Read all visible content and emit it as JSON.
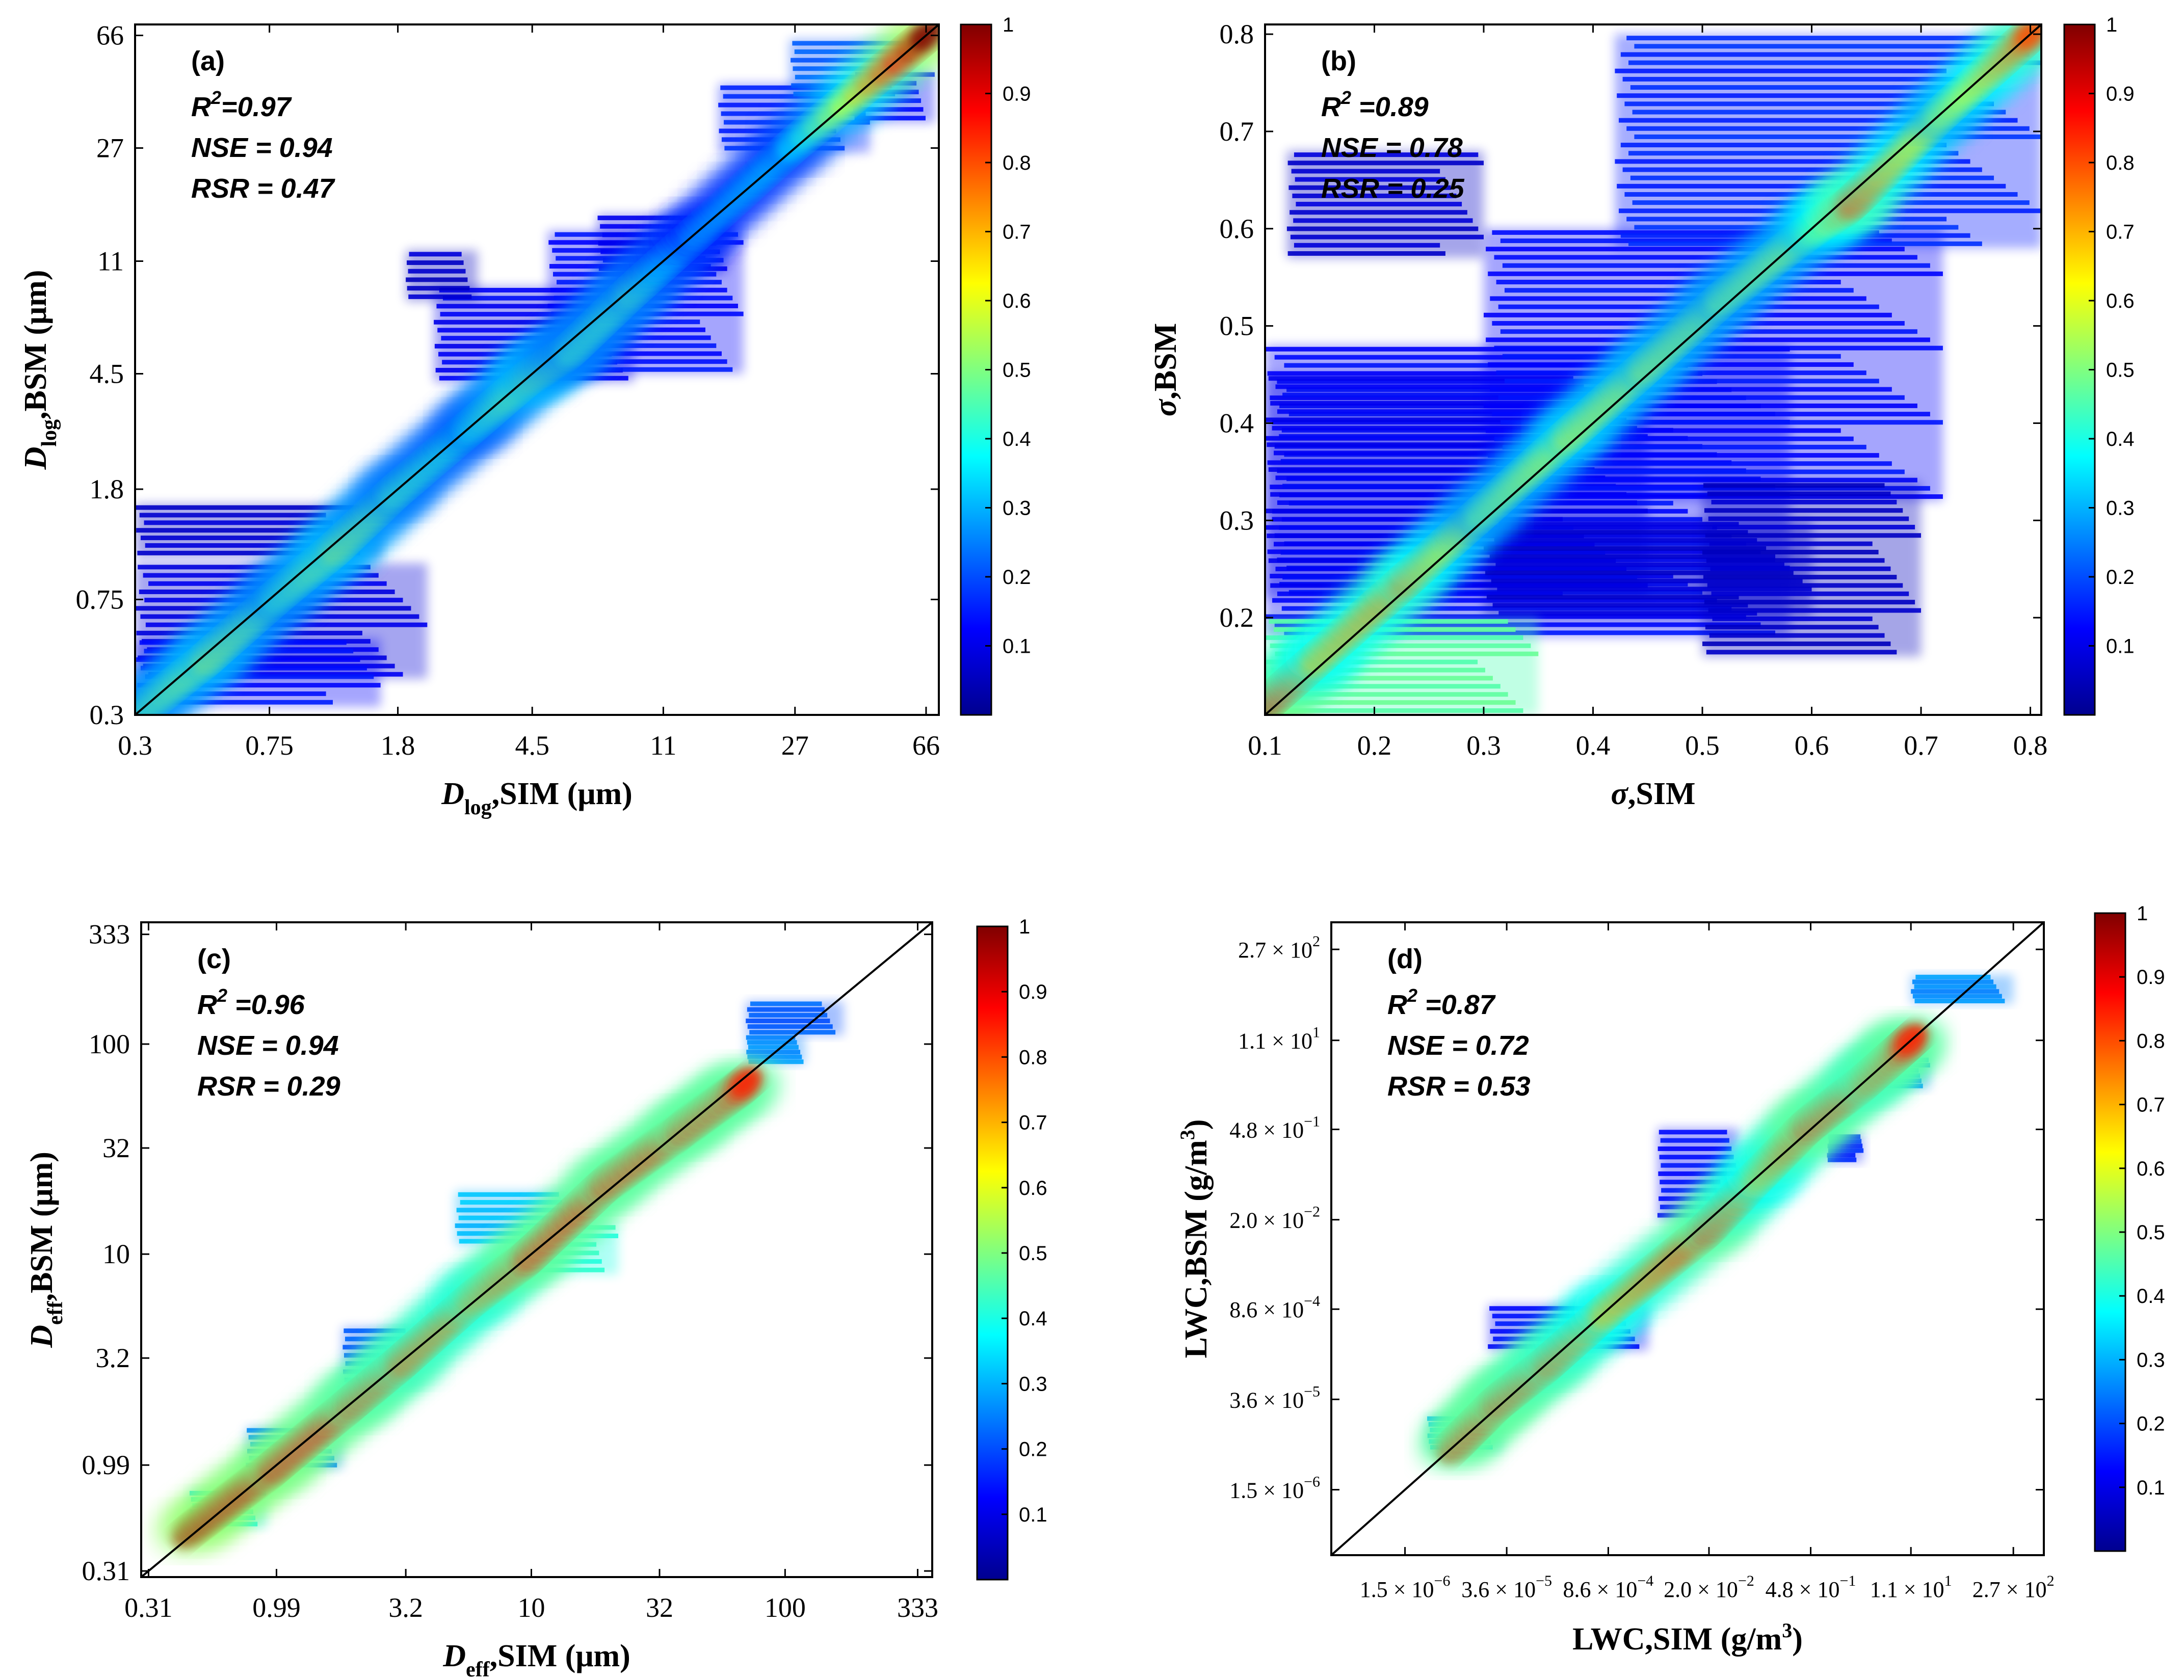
{
  "chart_data": [
    {
      "type": "heatmap",
      "panel_label": "(a)",
      "xlabel": {
        "main": "D",
        "sub": "log",
        "rest": ",SIM (μm)"
      },
      "ylabel": {
        "main": "D",
        "sub": "log",
        "rest": ",BSM (μm)"
      },
      "scale": "log",
      "xlim": [
        0.3,
        72
      ],
      "ylim": [
        0.3,
        72
      ],
      "x_ticks": [
        {
          "value": 0.3,
          "label": "0.3"
        },
        {
          "value": 0.75,
          "label": "0.75"
        },
        {
          "value": 1.8,
          "label": "1.8"
        },
        {
          "value": 4.5,
          "label": "4.5"
        },
        {
          "value": 11,
          "label": "11"
        },
        {
          "value": 27,
          "label": "27"
        },
        {
          "value": 66,
          "label": "66"
        }
      ],
      "y_ticks": [
        {
          "value": 0.3,
          "label": "0.3"
        },
        {
          "value": 0.75,
          "label": "0.75"
        },
        {
          "value": 1.8,
          "label": "1.8"
        },
        {
          "value": 4.5,
          "label": "4.5"
        },
        {
          "value": 11,
          "label": "11"
        },
        {
          "value": 27,
          "label": "27"
        },
        {
          "value": 66,
          "label": "66"
        }
      ],
      "stats": [
        {
          "name": "R",
          "sup": "2",
          "text": "=0.97"
        },
        {
          "name": "NSE",
          "sup": "",
          "text": " = 0.94"
        },
        {
          "name": "RSR",
          "sup": "",
          "text": " = 0.47"
        }
      ],
      "colorbar": {
        "min": 0,
        "max": 1,
        "ticks": [
          "0.1",
          "0.2",
          "0.3",
          "0.4",
          "0.5",
          "0.6",
          "0.7",
          "0.8",
          "0.9",
          "1"
        ]
      },
      "density": {
        "path": [
          [
            0.3,
            0.3,
            0.45
          ],
          [
            0.5,
            0.48,
            0.55
          ],
          [
            0.8,
            0.78,
            0.45
          ],
          [
            1.2,
            1.15,
            0.55
          ],
          [
            1.8,
            1.8,
            0.45
          ],
          [
            3,
            3,
            0.4
          ],
          [
            4.5,
            4.5,
            0.55
          ],
          [
            6,
            5.6,
            0.45
          ],
          [
            9,
            8.8,
            0.45
          ],
          [
            14,
            14,
            0.3
          ],
          [
            27,
            28,
            0.35
          ],
          [
            66,
            66,
            1.0
          ]
        ],
        "blobs": [
          {
            "x": [
              0.3,
              1.6
            ],
            "y": [
              1.05,
              1.6
            ],
            "level": 0.06
          },
          {
            "x": [
              0.3,
              2.2
            ],
            "y": [
              0.4,
              1.0
            ],
            "level": 0.08
          },
          {
            "x": [
              0.3,
              1.6
            ],
            "y": [
              0.32,
              0.55
            ],
            "level": 0.12
          },
          {
            "x": [
              2.3,
              9
            ],
            "y": [
              4.2,
              9
            ],
            "level": 0.1
          },
          {
            "x": [
              5,
              19
            ],
            "y": [
              4.5,
              14
            ],
            "level": 0.12
          },
          {
            "x": [
              1.9,
              3.1
            ],
            "y": [
              8,
              12
            ],
            "level": 0.05
          },
          {
            "x": [
              7,
              17
            ],
            "y": [
              10,
              16
            ],
            "level": 0.1
          },
          {
            "x": [
              16,
              45
            ],
            "y": [
              26,
              45
            ],
            "level": 0.15
          },
          {
            "x": [
              26,
              60
            ],
            "y": [
              40,
              64
            ],
            "level": 0.2
          },
          {
            "x": [
              40,
              70
            ],
            "y": [
              33,
              50
            ],
            "level": 0.12
          }
        ]
      }
    },
    {
      "type": "heatmap",
      "panel_label": "(b)",
      "xlabel": {
        "main": "σ",
        "sub": "",
        "rest": ",SIM"
      },
      "ylabel": {
        "main": "σ",
        "sub": "",
        "rest": ",BSM"
      },
      "scale": "linear",
      "xlim": [
        0.1,
        0.81
      ],
      "ylim": [
        0.1,
        0.81
      ],
      "x_ticks": [
        {
          "value": 0.1,
          "label": "0.1"
        },
        {
          "value": 0.2,
          "label": "0.2"
        },
        {
          "value": 0.3,
          "label": "0.3"
        },
        {
          "value": 0.4,
          "label": "0.4"
        },
        {
          "value": 0.5,
          "label": "0.5"
        },
        {
          "value": 0.6,
          "label": "0.6"
        },
        {
          "value": 0.7,
          "label": "0.7"
        },
        {
          "value": 0.8,
          "label": "0.8"
        }
      ],
      "y_ticks": [
        {
          "value": 0.2,
          "label": "0.2"
        },
        {
          "value": 0.3,
          "label": "0.3"
        },
        {
          "value": 0.4,
          "label": "0.4"
        },
        {
          "value": 0.5,
          "label": "0.5"
        },
        {
          "value": 0.6,
          "label": "0.6"
        },
        {
          "value": 0.7,
          "label": "0.7"
        },
        {
          "value": 0.8,
          "label": "0.8"
        }
      ],
      "stats": [
        {
          "name": "R",
          "sup": "2",
          "text": " =0.89"
        },
        {
          "name": "NSE",
          "sup": "",
          "text": " = 0.78"
        },
        {
          "name": "RSR",
          "sup": "",
          "text": " = 0.25"
        }
      ],
      "colorbar": {
        "min": 0,
        "max": 1,
        "ticks": [
          "0.1",
          "0.2",
          "0.3",
          "0.4",
          "0.5",
          "0.6",
          "0.7",
          "0.8",
          "0.9",
          "1"
        ]
      },
      "density": {
        "path": [
          [
            0.1,
            0.11,
            0.95
          ],
          [
            0.15,
            0.16,
            0.7
          ],
          [
            0.23,
            0.24,
            0.75
          ],
          [
            0.3,
            0.31,
            0.5
          ],
          [
            0.38,
            0.39,
            0.6
          ],
          [
            0.45,
            0.46,
            0.55
          ],
          [
            0.52,
            0.53,
            0.5
          ],
          [
            0.6,
            0.6,
            0.55
          ],
          [
            0.64,
            0.63,
            0.8
          ],
          [
            0.72,
            0.72,
            0.55
          ],
          [
            0.8,
            0.8,
            0.8
          ]
        ],
        "blobs": [
          {
            "x": [
              0.1,
              0.58
            ],
            "y": [
              0.18,
              0.48
            ],
            "level": 0.12
          },
          {
            "x": [
              0.1,
              0.45
            ],
            "y": [
              0.22,
              0.45
            ],
            "level": 0.1
          },
          {
            "x": [
              0.3,
              0.72
            ],
            "y": [
              0.32,
              0.6
            ],
            "level": 0.12
          },
          {
            "x": [
              0.42,
              0.81
            ],
            "y": [
              0.58,
              0.8
            ],
            "level": 0.15
          },
          {
            "x": [
              0.12,
              0.3
            ],
            "y": [
              0.57,
              0.68
            ],
            "level": 0.06
          },
          {
            "x": [
              0.3,
              0.6
            ],
            "y": [
              0.2,
              0.3
            ],
            "level": 0.06
          },
          {
            "x": [
              0.5,
              0.7
            ],
            "y": [
              0.16,
              0.34
            ],
            "level": 0.05
          },
          {
            "x": [
              0.1,
              0.35
            ],
            "y": [
              0.1,
              0.2
            ],
            "level": 0.45
          }
        ]
      }
    },
    {
      "type": "heatmap",
      "panel_label": "(c)",
      "xlabel": {
        "main": "D",
        "sub": "eff",
        "rest": ",SIM (μm)"
      },
      "ylabel": {
        "main": "D",
        "sub": "eff",
        "rest": ",BSM (μm)"
      },
      "scale": "log",
      "xlim": [
        0.29,
        380
      ],
      "ylim": [
        0.29,
        380
      ],
      "x_ticks": [
        {
          "value": 0.31,
          "label": "0.31"
        },
        {
          "value": 0.99,
          "label": "0.99"
        },
        {
          "value": 3.2,
          "label": "3.2"
        },
        {
          "value": 10,
          "label": "10"
        },
        {
          "value": 32,
          "label": "32"
        },
        {
          "value": 100,
          "label": "100"
        },
        {
          "value": 333,
          "label": "333"
        }
      ],
      "y_ticks": [
        {
          "value": 0.31,
          "label": "0.31"
        },
        {
          "value": 0.99,
          "label": "0.99"
        },
        {
          "value": 3.2,
          "label": "3.2"
        },
        {
          "value": 10,
          "label": "10"
        },
        {
          "value": 32,
          "label": "32"
        },
        {
          "value": 100,
          "label": "100"
        },
        {
          "value": 333,
          "label": "333"
        }
      ],
      "stats": [
        {
          "name": "R",
          "sup": "2",
          "text": " =0.96"
        },
        {
          "name": "NSE",
          "sup": "",
          "text": " = 0.94"
        },
        {
          "name": "RSR",
          "sup": "",
          "text": " = 0.29"
        }
      ],
      "colorbar": {
        "min": 0,
        "max": 1,
        "ticks": [
          "0.1",
          "0.2",
          "0.3",
          "0.4",
          "0.5",
          "0.6",
          "0.7",
          "0.8",
          "0.9",
          "1"
        ]
      },
      "density": {
        "path": [
          [
            0.45,
            0.48,
            0.95
          ],
          [
            0.99,
            0.99,
            0.9
          ],
          [
            2,
            2,
            0.85
          ],
          [
            3.2,
            3.2,
            0.8
          ],
          [
            6,
            6.3,
            0.75
          ],
          [
            10,
            10,
            0.85
          ],
          [
            20,
            22,
            0.85
          ],
          [
            40,
            40,
            0.85
          ],
          [
            70,
            65,
            0.85
          ]
        ],
        "blobs": [
          {
            "x": [
              0.45,
              0.9
            ],
            "y": [
              0.5,
              0.75
            ],
            "level": 0.35
          },
          {
            "x": [
              0.75,
              1.8
            ],
            "y": [
              0.95,
              1.5
            ],
            "level": 0.25
          },
          {
            "x": [
              1.8,
              3.5
            ],
            "y": [
              2.4,
              4.5
            ],
            "level": 0.2
          },
          {
            "x": [
              5,
              14
            ],
            "y": [
              11,
              20
            ],
            "level": 0.3
          },
          {
            "x": [
              9,
              22
            ],
            "y": [
              8,
              14
            ],
            "level": 0.4
          },
          {
            "x": [
              70,
              170
            ],
            "y": [
              110,
              160
            ],
            "level": 0.2
          },
          {
            "x": [
              70,
              120
            ],
            "y": [
              80,
              110
            ],
            "level": 0.25
          }
        ]
      }
    },
    {
      "type": "heatmap",
      "panel_label": "(d)",
      "xlabel": {
        "main": "LWC,SIM (g/m",
        "sub": "",
        "rest": ")",
        "sup": "3"
      },
      "ylabel": {
        "main": "LWC,BSM (g/m",
        "sub": "",
        "rest": ")",
        "sup": "3"
      },
      "scale": "log",
      "xlim": [
        1.5e-07,
        700
      ],
      "ylim": [
        1.5e-07,
        700
      ],
      "x_ticks": [
        {
          "value": 1.5e-06,
          "mant": "1.5",
          "exp": "-6"
        },
        {
          "value": 3.6e-05,
          "mant": "3.6",
          "exp": "-5"
        },
        {
          "value": 0.00086,
          "mant": "8.6",
          "exp": "-4"
        },
        {
          "value": 0.02,
          "mant": "2.0",
          "exp": "-2"
        },
        {
          "value": 0.48,
          "mant": "4.8",
          "exp": "-1"
        },
        {
          "value": 11.0,
          "mant": "1.1",
          "exp": "1"
        },
        {
          "value": 270.0,
          "mant": "2.7",
          "exp": "2"
        }
      ],
      "y_ticks": [
        {
          "value": 1.5e-06,
          "mant": "1.5",
          "exp": "-6"
        },
        {
          "value": 3.6e-05,
          "mant": "3.6",
          "exp": "-5"
        },
        {
          "value": 0.00086,
          "mant": "8.6",
          "exp": "-4"
        },
        {
          "value": 0.02,
          "mant": "2.0",
          "exp": "-2"
        },
        {
          "value": 0.48,
          "mant": "4.8",
          "exp": "-1"
        },
        {
          "value": 11.0,
          "mant": "1.1",
          "exp": "1"
        },
        {
          "value": 270.0,
          "mant": "2.7",
          "exp": "2"
        }
      ],
      "stats": [
        {
          "name": "R",
          "sup": "2",
          "text": " =0.87"
        },
        {
          "name": "NSE",
          "sup": "",
          "text": " = 0.72"
        },
        {
          "name": "RSR",
          "sup": "",
          "text": " = 0.53"
        }
      ],
      "colorbar": {
        "min": 0,
        "max": 1,
        "ticks": [
          "0.1",
          "0.2",
          "0.3",
          "0.4",
          "0.5",
          "0.6",
          "0.7",
          "0.8",
          "0.9",
          "1"
        ]
      },
      "density": {
        "path": [
          [
            7e-06,
            7e-06,
            0.85
          ],
          [
            3e-05,
            3.6e-05,
            0.85
          ],
          [
            0.00015,
            0.00015,
            0.8
          ],
          [
            0.00086,
            0.00086,
            0.7
          ],
          [
            0.02,
            0.015,
            0.85
          ],
          [
            0.1,
            0.1,
            0.7
          ],
          [
            0.48,
            0.6,
            0.85
          ],
          [
            3,
            3,
            0.8
          ],
          [
            11,
            11,
            0.85
          ]
        ],
        "blobs": [
          {
            "x": [
              3e-06,
              3e-05
            ],
            "y": [
              6e-06,
              2e-05
            ],
            "level": 0.3
          },
          {
            "x": [
              2e-05,
              0.003
            ],
            "y": [
              0.0002,
              0.001
            ],
            "level": 0.12
          },
          {
            "x": [
              0.004,
              0.05
            ],
            "y": [
              0.02,
              0.5
            ],
            "level": 0.12
          },
          {
            "x": [
              0.8,
              2.5
            ],
            "y": [
              0.15,
              0.4
            ],
            "level": 0.15
          },
          {
            "x": [
              4,
              20
            ],
            "y": [
              2,
              6
            ],
            "level": 0.25
          },
          {
            "x": [
              11,
              270
            ],
            "y": [
              40,
              110
            ],
            "level": 0.25
          }
        ]
      }
    }
  ]
}
